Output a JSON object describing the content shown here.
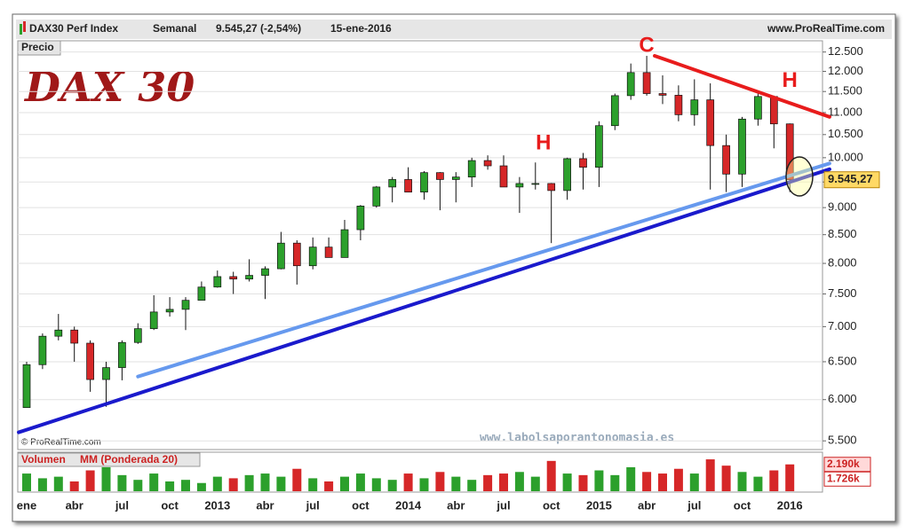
{
  "header": {
    "instrument": "DAX30 Perf Index",
    "period": "Semanal",
    "quote": "9.545,27 (-2,54%)",
    "date": "15-ene-2016",
    "site": "www.ProRealTime.com"
  },
  "panel_label": "Precio",
  "big_title": "DAX 30",
  "copyright": "© ProRealTime.com",
  "watermark": "www.labolsaporantonomasia.es",
  "chart_data": {
    "type": "candlestick",
    "log_scale": true,
    "categories": [
      "ene",
      null,
      null,
      "abr",
      null,
      null,
      "jul",
      null,
      null,
      "oct",
      null,
      null,
      "2013",
      null,
      null,
      "abr",
      null,
      null,
      "jul",
      null,
      null,
      "oct",
      null,
      null,
      "2014",
      null,
      null,
      "abr",
      null,
      null,
      "jul",
      null,
      null,
      "oct",
      null,
      null,
      "2015",
      null,
      null,
      "abr",
      null,
      null,
      "jul",
      null,
      null,
      "oct",
      null,
      null,
      "2016"
    ],
    "open": [
      5900,
      6460,
      6860,
      6950,
      6760,
      6260,
      6420,
      6770,
      6970,
      7220,
      7260,
      7400,
      7610,
      7780,
      7740,
      7800,
      7910,
      8350,
      7960,
      8280,
      8100,
      8590,
      9030,
      9400,
      9550,
      9300,
      9690,
      9550,
      9600,
      9940,
      9830,
      9400,
      9470,
      9470,
      9330,
      9980,
      9800,
      10700,
      11400,
      11970,
      11450,
      11410,
      10950,
      11300,
      10260,
      9660,
      10850,
      11380,
      10740
    ],
    "high": [
      6500,
      6900,
      7190,
      7000,
      6800,
      6500,
      6800,
      7050,
      7480,
      7450,
      7450,
      7700,
      7880,
      7860,
      8070,
      7950,
      8550,
      8400,
      8450,
      8450,
      8770,
      9050,
      9420,
      9600,
      9800,
      9720,
      9700,
      9700,
      10000,
      10050,
      10050,
      9600,
      9900,
      9480,
      10000,
      10100,
      10800,
      11450,
      12200,
      12400,
      11900,
      11650,
      11800,
      11700,
      10500,
      10900,
      11450,
      11400,
      10750
    ],
    "low": [
      5900,
      6400,
      6800,
      6500,
      6100,
      5910,
      6250,
      6750,
      6950,
      7150,
      6950,
      7400,
      7600,
      7500,
      7700,
      7420,
      7900,
      7650,
      7900,
      8100,
      8100,
      8400,
      9000,
      9100,
      9300,
      9150,
      8950,
      9100,
      9400,
      9750,
      9400,
      8900,
      9350,
      8350,
      9150,
      9350,
      9400,
      10600,
      11300,
      11400,
      11200,
      10800,
      10700,
      9350,
      9300,
      9400,
      10700,
      10200,
      9300
    ],
    "close": [
      6460,
      6860,
      6950,
      6760,
      6260,
      6420,
      6770,
      6970,
      7220,
      7260,
      7400,
      7610,
      7780,
      7740,
      7800,
      7910,
      8350,
      7960,
      8280,
      8100,
      8590,
      9030,
      9400,
      9550,
      9300,
      9690,
      9550,
      9600,
      9940,
      9830,
      9400,
      9470,
      9470,
      9330,
      9980,
      9800,
      10700,
      11400,
      11970,
      11450,
      11410,
      10950,
      11300,
      10260,
      9660,
      10850,
      11380,
      10740,
      9545.27
    ],
    "bull_color": "#2ca02c",
    "bear_color": "#d62728",
    "last_label": {
      "value": 9545.27,
      "label": "9.545,27"
    },
    "ylim": [
      5400,
      12800
    ],
    "yticks": [
      {
        "value": 5500,
        "label": "5.500"
      },
      {
        "value": 6000,
        "label": "6.000"
      },
      {
        "value": 6500,
        "label": "6.500"
      },
      {
        "value": 7000,
        "label": "7.000"
      },
      {
        "value": 7500,
        "label": "7.500"
      },
      {
        "value": 8000,
        "label": "8.000"
      },
      {
        "value": 8500,
        "label": "8.500"
      },
      {
        "value": 9000,
        "label": "9.000"
      },
      {
        "value": 9500,
        "label": "9.500"
      },
      {
        "value": 10000,
        "label": "10.000"
      },
      {
        "value": 10500,
        "label": "10.500"
      },
      {
        "value": 11000,
        "label": "11.000"
      },
      {
        "value": 11500,
        "label": "11.500"
      },
      {
        "value": 12000,
        "label": "12.000"
      },
      {
        "value": 12500,
        "label": "12.500"
      }
    ],
    "grid": true,
    "trendlines": [
      {
        "color": "#1a1acc",
        "x": [
          -0.5,
          50.5
        ],
        "values": [
          5600,
          9760
        ]
      },
      {
        "color": "#6699ee",
        "x": [
          7,
          50.5
        ],
        "values": [
          6300,
          9880
        ]
      },
      {
        "color": "#e81c1c",
        "x": [
          39.5,
          50.5
        ],
        "values": [
          12400,
          10900
        ]
      }
    ],
    "annotations": [
      {
        "text": "C",
        "x": 39,
        "value": 12650
      },
      {
        "text": "H",
        "x": 32.5,
        "value": 10300
      },
      {
        "text": "H",
        "x": 48,
        "value": 11750
      }
    ],
    "volume": {
      "name": "Volumen",
      "ma_name": "MM (Ponderada 20)",
      "values": [
        1900,
        1750,
        1800,
        1650,
        2000,
        2100,
        1850,
        1700,
        1900,
        1650,
        1700,
        1600,
        1800,
        1750,
        1850,
        1900,
        1800,
        2050,
        1750,
        1650,
        1800,
        1900,
        1750,
        1700,
        1900,
        1750,
        1950,
        1800,
        1700,
        1850,
        1900,
        1950,
        1800,
        2300,
        1900,
        1850,
        2000,
        1850,
        2100,
        1950,
        1900,
        2050,
        1900,
        2350,
        2150,
        1950,
        1800,
        2000,
        2190
      ],
      "ylim": [
        1340,
        2520
      ],
      "markers": [
        {
          "value": 2190,
          "label": "2.190k"
        },
        {
          "value": 1726,
          "label": "1.726k"
        }
      ]
    }
  }
}
